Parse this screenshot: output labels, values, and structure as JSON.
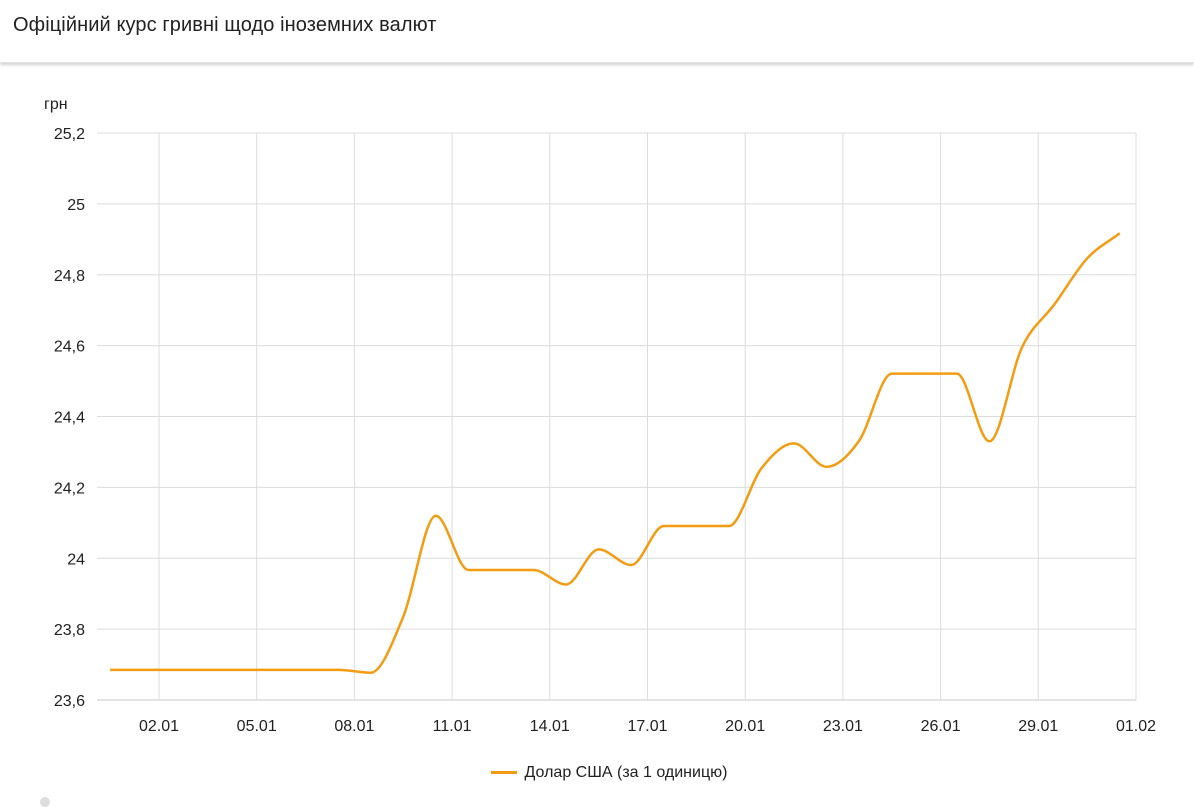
{
  "header": {
    "title": "Офіційний курс гривні щодо іноземних валют"
  },
  "chart_data": {
    "type": "line",
    "title": "",
    "ylabel": "грн",
    "xlabel": "",
    "ylim": [
      23.6,
      25.2
    ],
    "yticks": [
      "23,6",
      "23,8",
      "24",
      "24,2",
      "24,4",
      "24,6",
      "24,8",
      "25",
      "25,2"
    ],
    "ytick_values": [
      23.6,
      23.8,
      24.0,
      24.2,
      24.4,
      24.6,
      24.8,
      25.0,
      25.2
    ],
    "xticks": [
      "02.01",
      "05.01",
      "08.01",
      "11.01",
      "14.01",
      "17.01",
      "20.01",
      "23.01",
      "26.01",
      "29.01",
      "01.02"
    ],
    "grid": true,
    "legend_position": "bottom",
    "x": [
      "01.01",
      "02.01",
      "03.01",
      "04.01",
      "05.01",
      "06.01",
      "07.01",
      "08.01",
      "09.01",
      "10.01",
      "11.01",
      "12.01",
      "13.01",
      "14.01",
      "15.01",
      "16.01",
      "17.01",
      "18.01",
      "19.01",
      "20.01",
      "21.01",
      "22.01",
      "23.01",
      "24.01",
      "25.01",
      "26.01",
      "27.01",
      "28.01",
      "29.01",
      "30.01",
      "31.01",
      "01.02"
    ],
    "series": [
      {
        "name": "Долар США (за 1 одиницю)",
        "color": "#f39c12",
        "values": [
          23.685,
          23.685,
          23.685,
          23.685,
          23.685,
          23.685,
          23.685,
          23.685,
          23.677,
          23.835,
          24.12,
          23.967,
          23.967,
          23.967,
          23.926,
          24.025,
          23.981,
          24.091,
          24.091,
          24.091,
          24.254,
          24.324,
          24.258,
          24.332,
          24.521,
          24.521,
          24.521,
          24.33,
          24.595,
          24.717,
          24.846,
          24.917
        ]
      }
    ]
  }
}
